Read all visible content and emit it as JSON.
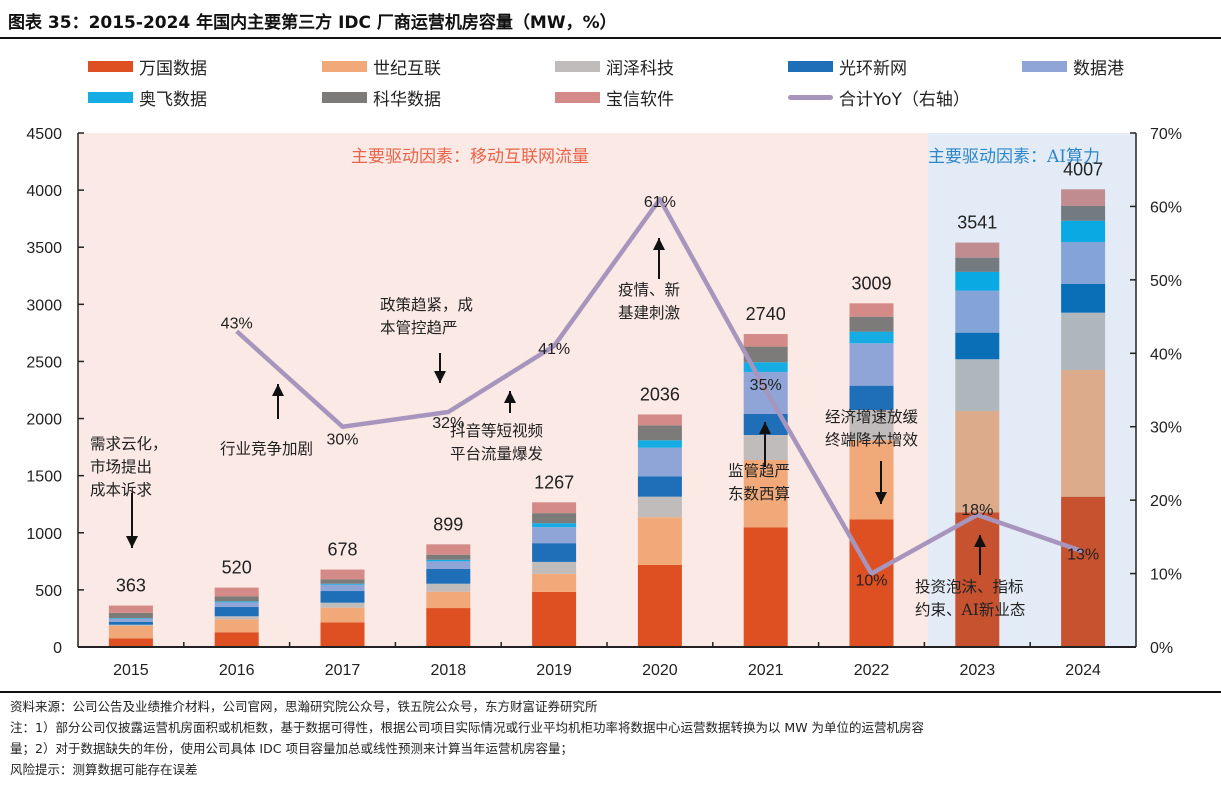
{
  "title": "图表 35：2015-2024 年国内主要第三方 IDC 厂商运营机房容量（MW，%）",
  "legend": [
    {
      "name": "万国数据",
      "type": "bar",
      "color": "#de5021"
    },
    {
      "name": "世纪互联",
      "type": "bar",
      "color": "#f2a97a"
    },
    {
      "name": "润泽科技",
      "type": "bar",
      "color": "#c0bcbb"
    },
    {
      "name": "光环新网",
      "type": "bar",
      "color": "#1f6fb8"
    },
    {
      "name": "数据港",
      "type": "bar",
      "color": "#8fa5d8"
    },
    {
      "name": "奥飞数据",
      "type": "bar",
      "color": "#15ace3"
    },
    {
      "name": "科华数据",
      "type": "bar",
      "color": "#7d7b7a"
    },
    {
      "name": "宝信软件",
      "type": "bar",
      "color": "#d48b88"
    },
    {
      "name": "合计YoY（右轴）",
      "type": "line",
      "color": "#a795bd"
    }
  ],
  "chart_data": {
    "type": "bar",
    "stacked": true,
    "title": "2015-2024 年国内主要第三方 IDC 厂商运营机房容量（MW，%）",
    "categories": [
      "2015",
      "2016",
      "2017",
      "2018",
      "2019",
      "2020",
      "2021",
      "2022",
      "2023",
      "2024"
    ],
    "series": [
      {
        "name": "万国数据",
        "color": "#de5021",
        "values": [
          76,
          129,
          216,
          341,
          482,
          718,
          1048,
          1118,
          1179,
          1316
        ]
      },
      {
        "name": "世纪互联",
        "color": "#f2a97a",
        "values": [
          108,
          114,
          128,
          143,
          158,
          418,
          589,
          694,
          887,
          1109
        ]
      },
      {
        "name": "润泽科技",
        "color": "#c0bcbb",
        "values": [
          11,
          26,
          44,
          70,
          105,
          180,
          219,
          263,
          453,
          502
        ]
      },
      {
        "name": "光环新网",
        "color": "#1f6fb8",
        "values": [
          26,
          81,
          102,
          131,
          164,
          179,
          184,
          213,
          233,
          251
        ]
      },
      {
        "name": "数据港",
        "color": "#8fa5d8",
        "values": [
          26,
          41,
          55,
          65,
          140,
          250,
          368,
          371,
          368,
          368
        ]
      },
      {
        "name": "奥飞数据",
        "color": "#15ace3",
        "values": [
          6,
          9,
          9,
          14,
          35,
          65,
          85,
          102,
          164,
          186
        ]
      },
      {
        "name": "科华数据",
        "color": "#7d7b7a",
        "values": [
          46,
          44,
          39,
          44,
          88,
          131,
          137,
          131,
          125,
          129
        ]
      },
      {
        "name": "宝信软件",
        "color": "#d48b88",
        "values": [
          64,
          76,
          85,
          91,
          95,
          95,
          110,
          117,
          132,
          146
        ]
      }
    ],
    "totals": [
      363,
      520,
      678,
      899,
      1267,
      2036,
      2740,
      3009,
      3541,
      4007
    ],
    "line_series": {
      "name": "合计YoY（右轴）",
      "axis": "right",
      "color": "#a795bd",
      "categories": [
        "2016",
        "2017",
        "2018",
        "2019",
        "2020",
        "2021",
        "2022",
        "2023",
        "2024"
      ],
      "values": [
        43,
        30,
        32,
        41,
        61,
        35,
        10,
        18,
        13
      ],
      "labels": [
        "43%",
        "30%",
        "32%",
        "41%",
        "61%",
        "35%",
        "10%",
        "18%",
        "13%"
      ]
    },
    "y_left": {
      "min": 0,
      "max": 4500,
      "step": 500,
      "ticks": [
        "0",
        "500",
        "1000",
        "1500",
        "2000",
        "2500",
        "3000",
        "3500",
        "4000",
        "4500"
      ]
    },
    "y_right": {
      "min": 0,
      "max": 70,
      "step": 10,
      "ticks": [
        "0%",
        "10%",
        "20%",
        "30%",
        "40%",
        "50%",
        "60%",
        "70%"
      ]
    },
    "xlabel": "",
    "ylabel": "",
    "grid": false,
    "legend_position": "top",
    "regions": [
      {
        "label": "主要驱动因素：移动互联网流量",
        "from": "2015",
        "to": "2022",
        "color": "#fbe9e5",
        "label_color": "#e8644a"
      },
      {
        "label": "主要驱动因素：AI算力",
        "from": "2023",
        "to": "2024",
        "color": "#e3ecf6",
        "label_color": "#2e86c8"
      }
    ],
    "annotations": [
      {
        "lines": [
          "需求云化，",
          "市场提出",
          "成本诉求"
        ],
        "arrow": "down",
        "category": "2015"
      },
      {
        "lines": [
          "行业竞争加剧"
        ],
        "arrow": "up",
        "category": "2016"
      },
      {
        "lines": [
          "政策趋紧，成",
          "本管控趋严"
        ],
        "arrow": "down",
        "category": "2018"
      },
      {
        "lines": [
          "抖音等短视频",
          "平台流量爆发"
        ],
        "arrow": "up",
        "category": "2019"
      },
      {
        "lines": [
          "疫情、新",
          "基建刺激"
        ],
        "arrow": "up",
        "category": "2020"
      },
      {
        "lines": [
          "监管趋严",
          "东数西算"
        ],
        "arrow": "up",
        "category": "2021"
      },
      {
        "lines": [
          "经济增速放缓",
          "终端降本增效"
        ],
        "arrow": "down",
        "category": "2022"
      },
      {
        "lines": [
          "投资泡沫、指标",
          "约束、AI新业态"
        ],
        "arrow": "up",
        "category": "2023"
      }
    ]
  },
  "footnotes": [
    "资料来源：公司公告及业绩推介材料，公司官网，思瀚研究院公众号，铁五院公众号，东方财富证券研究所",
    "注：1）部分公司仅披露运营机房面积或机柜数，基于数据可得性，根据公司项目实际情况或行业平均机柜功率将数据中心运营数据转换为以 MW 为单位的运营机房容",
    "量；2）对于数据缺失的年份，使用公司具体 IDC 项目容量加总或线性预测来计算当年运营机房容量；",
    "风险提示：测算数据可能存在误差"
  ]
}
